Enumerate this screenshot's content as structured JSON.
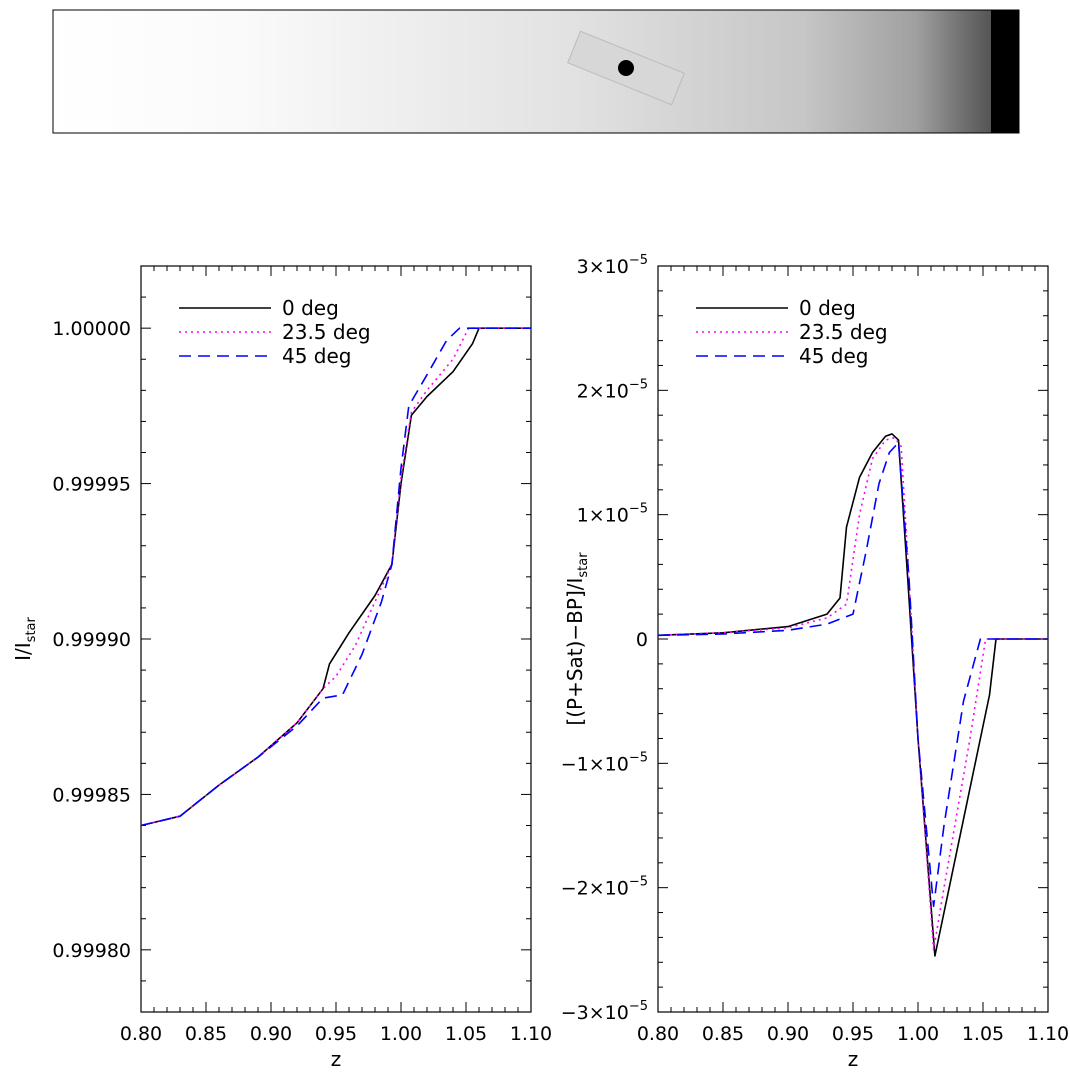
{
  "colors": {
    "series_0": "#000000",
    "series_235": "#ff00ff",
    "series_45": "#0000ff"
  },
  "legend": {
    "entries": [
      {
        "name": "0 deg",
        "color": "#000000",
        "dash": "solid"
      },
      {
        "name": "23.5 deg",
        "color": "#ff00ff",
        "dash": "dotted"
      },
      {
        "name": "45 deg",
        "color": "#0000ff",
        "dash": "dashed"
      }
    ],
    "placement": "top-left"
  },
  "chart_data": [
    {
      "type": "line",
      "xlabel": "z",
      "ylabel_main": "I/I",
      "ylabel_sub": "star",
      "xlim": [
        0.8,
        1.1
      ],
      "ylim": [
        0.99978,
        1.00002
      ],
      "x_ticks": [
        "0.80",
        "0.85",
        "0.90",
        "0.95",
        "1.00",
        "1.05",
        "1.10"
      ],
      "y_ticks": [
        "0.99980",
        "0.99985",
        "0.99990",
        "0.99995",
        "1.00000"
      ],
      "y_tick_values": [
        0.9998,
        0.99985,
        0.9999,
        0.99995,
        1.0
      ],
      "series": [
        {
          "name": "0 deg",
          "x": [
            0.8,
            0.83,
            0.86,
            0.89,
            0.92,
            0.94,
            0.945,
            0.96,
            0.98,
            0.993,
            1.0,
            1.008,
            1.02,
            1.04,
            1.055,
            1.06,
            1.1
          ],
          "y": [
            0.99984,
            0.999843,
            0.999853,
            0.999862,
            0.999873,
            0.999884,
            0.999892,
            0.999902,
            0.999914,
            0.999924,
            0.99995,
            0.999972,
            0.999978,
            0.999986,
            0.999995,
            1.0,
            1.0
          ]
        },
        {
          "name": "23.5 deg",
          "x": [
            0.8,
            0.83,
            0.86,
            0.89,
            0.92,
            0.94,
            0.95,
            0.965,
            0.98,
            0.993,
            1.0,
            1.008,
            1.02,
            1.04,
            1.052,
            1.1
          ],
          "y": [
            0.99984,
            0.999843,
            0.999853,
            0.999862,
            0.999873,
            0.999884,
            0.999888,
            0.999898,
            0.999912,
            0.999924,
            0.999952,
            0.999973,
            0.99998,
            0.99999,
            1.0,
            1.0
          ]
        },
        {
          "name": "45 deg",
          "x": [
            0.8,
            0.83,
            0.86,
            0.89,
            0.92,
            0.94,
            0.955,
            0.97,
            0.985,
            0.993,
            1.0,
            1.006,
            1.02,
            1.035,
            1.045,
            1.1
          ],
          "y": [
            0.99984,
            0.999843,
            0.999853,
            0.999862,
            0.999872,
            0.999881,
            0.999882,
            0.999895,
            0.999912,
            0.999924,
            0.999955,
            0.999975,
            0.999985,
            0.999996,
            1.0,
            1.0
          ]
        }
      ]
    },
    {
      "type": "line",
      "xlabel": "z",
      "ylabel_main": "[(P+Sat)−BP]/I",
      "ylabel_sub": "star",
      "xlim": [
        0.8,
        1.1
      ],
      "ylim": [
        -3e-05,
        3e-05
      ],
      "x_ticks": [
        "0.80",
        "0.85",
        "0.90",
        "0.95",
        "1.00",
        "1.05",
        "1.10"
      ],
      "y_ticks_mantissa": [
        "−3×10",
        "−2×10",
        "−1×10",
        "0",
        "1×10",
        "2×10",
        "3×10"
      ],
      "y_ticks_exp": [
        "−5",
        "−5",
        "−5",
        "",
        "−5",
        "−5",
        "−5"
      ],
      "y_tick_values": [
        -3e-05,
        -2e-05,
        -1e-05,
        0,
        1e-05,
        2e-05,
        3e-05
      ],
      "series": [
        {
          "name": "0 deg",
          "x": [
            0.8,
            0.85,
            0.9,
            0.93,
            0.94,
            0.945,
            0.955,
            0.965,
            0.975,
            0.98,
            0.985,
            0.992,
            1.0,
            1.013,
            1.02,
            1.04,
            1.055,
            1.06,
            1.1
          ],
          "y": [
            3e-07,
            5e-07,
            1e-06,
            2e-06,
            3.3e-06,
            9e-06,
            1.3e-05,
            1.5e-05,
            1.63e-05,
            1.65e-05,
            1.6e-05,
            5e-06,
            -8e-06,
            -2.55e-05,
            -2.2e-05,
            -1.2e-05,
            -4.5e-06,
            0,
            0
          ]
        },
        {
          "name": "23.5 deg",
          "x": [
            0.8,
            0.85,
            0.9,
            0.93,
            0.945,
            0.955,
            0.965,
            0.975,
            0.982,
            0.987,
            0.993,
            1.0,
            1.012,
            1.02,
            1.04,
            1.052,
            1.1
          ],
          "y": [
            3e-07,
            5e-07,
            9e-07,
            1.7e-06,
            2.8e-06,
            1e-05,
            1.45e-05,
            1.6e-05,
            1.62e-05,
            1.55e-05,
            5e-06,
            -8e-06,
            -2.5e-05,
            -2e-05,
            -8e-06,
            0,
            0
          ]
        },
        {
          "name": "45 deg",
          "x": [
            0.8,
            0.85,
            0.9,
            0.93,
            0.95,
            0.96,
            0.97,
            0.978,
            0.985,
            0.993,
            1.0,
            1.012,
            1.02,
            1.035,
            1.048,
            1.1
          ],
          "y": [
            3e-07,
            4e-07,
            7e-07,
            1.2e-06,
            2e-06,
            7e-06,
            1.25e-05,
            1.5e-05,
            1.58e-05,
            5e-06,
            -8e-06,
            -2.15e-05,
            -1.5e-05,
            -5e-06,
            0,
            0
          ]
        }
      ]
    }
  ]
}
